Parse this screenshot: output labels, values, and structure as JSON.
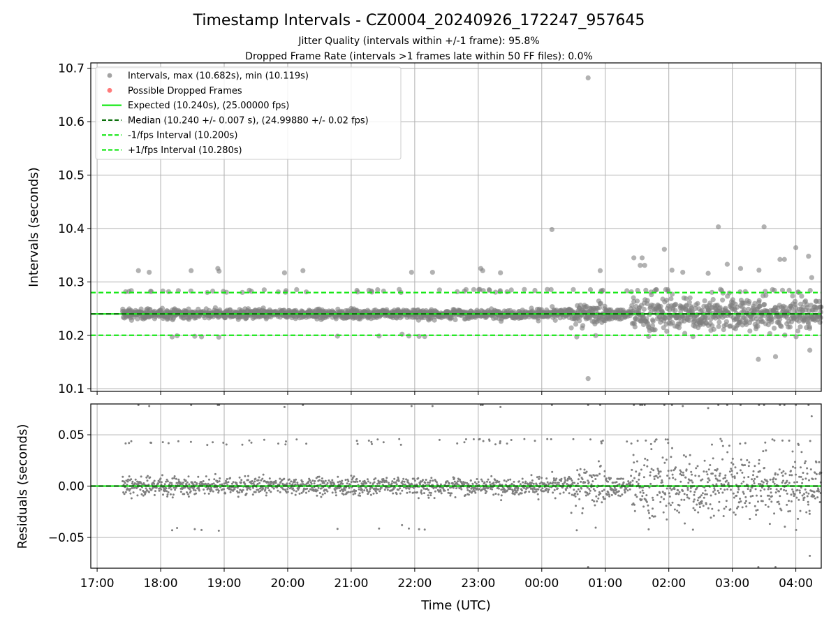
{
  "header": {
    "title": "Timestamp Intervals - CZ0004_20240926_172247_957645",
    "subtitle1": "Jitter Quality (intervals within +/-1 frame): 95.8%",
    "subtitle2": "Dropped Frame Rate (intervals >1 frames late within 50 FF files): 0.0%"
  },
  "colors": {
    "points": "#7f7f7f",
    "dropped": "#ff5a5a",
    "expected": "#17e817",
    "median": "#0a6e0a",
    "bound": "#17e817",
    "grid": "#b0b0b0"
  },
  "chart_data": [
    {
      "type": "scatter",
      "panel": "intervals",
      "xlabel": "",
      "ylabel": "Intervals (seconds)",
      "x_unit": "hours since 17:00 UTC (24-hour clock, wraps at midnight)",
      "xlim": [
        16.9,
        28.4
      ],
      "ylim": [
        10.095,
        10.71
      ],
      "yticks": [
        "10.1",
        "10.2",
        "10.3",
        "10.4",
        "10.5",
        "10.6",
        "10.7"
      ],
      "grid": true,
      "legend_position": "upper-left",
      "legend": [
        {
          "label": "Intervals, max (10.682s), min (10.119s)",
          "style": "marker",
          "color": "#999999"
        },
        {
          "label": "Possible Dropped Frames",
          "style": "marker",
          "color": "#ff6b6b"
        },
        {
          "label": "Expected (10.240s), (25.00000 fps)",
          "style": "solid",
          "color": "#17e817"
        },
        {
          "label": "Median (10.240 +/- 0.007 s), (24.99880 +/- 0.02 fps)",
          "style": "dashed",
          "color": "#0a6e0a"
        },
        {
          "label": "-1/fps Interval (10.200s)",
          "style": "dashed",
          "color": "#17e817"
        },
        {
          "label": "+1/fps Interval (10.280s)",
          "style": "dashed",
          "color": "#17e817"
        }
      ],
      "reference_lines": [
        {
          "name": "Expected",
          "y": 10.24
        },
        {
          "name": "Median",
          "y": 10.24
        },
        {
          "name": "-1/fps Interval",
          "y": 10.2
        },
        {
          "name": "+1/fps Interval",
          "y": 10.28
        }
      ],
      "max_interval": 10.682,
      "min_interval": 10.119,
      "data_x_range": [
        17.4,
        28.4
      ],
      "outliers": [
        {
          "x": 17.65,
          "y": 10.321
        },
        {
          "x": 17.82,
          "y": 10.318
        },
        {
          "x": 18.48,
          "y": 10.321
        },
        {
          "x": 18.9,
          "y": 10.325
        },
        {
          "x": 18.92,
          "y": 10.32
        },
        {
          "x": 19.95,
          "y": 10.317
        },
        {
          "x": 20.24,
          "y": 10.321
        },
        {
          "x": 21.95,
          "y": 10.318
        },
        {
          "x": 22.28,
          "y": 10.318
        },
        {
          "x": 23.04,
          "y": 10.325
        },
        {
          "x": 23.07,
          "y": 10.321
        },
        {
          "x": 23.35,
          "y": 10.317
        },
        {
          "x": 24.16,
          "y": 10.398
        },
        {
          "x": 24.73,
          "y": 10.682
        },
        {
          "x": 24.73,
          "y": 10.119
        },
        {
          "x": 24.92,
          "y": 10.321
        },
        {
          "x": 25.45,
          "y": 10.345
        },
        {
          "x": 25.58,
          "y": 10.345
        },
        {
          "x": 25.55,
          "y": 10.331
        },
        {
          "x": 25.62,
          "y": 10.331
        },
        {
          "x": 25.93,
          "y": 10.361
        },
        {
          "x": 26.05,
          "y": 10.322
        },
        {
          "x": 26.22,
          "y": 10.318
        },
        {
          "x": 26.62,
          "y": 10.316
        },
        {
          "x": 26.78,
          "y": 10.403
        },
        {
          "x": 26.92,
          "y": 10.333
        },
        {
          "x": 27.13,
          "y": 10.325
        },
        {
          "x": 27.42,
          "y": 10.322
        },
        {
          "x": 27.5,
          "y": 10.403
        },
        {
          "x": 27.75,
          "y": 10.342
        },
        {
          "x": 27.82,
          "y": 10.342
        },
        {
          "x": 28.0,
          "y": 10.364
        },
        {
          "x": 28.2,
          "y": 10.348
        },
        {
          "x": 28.25,
          "y": 10.308
        },
        {
          "x": 27.41,
          "y": 10.155
        },
        {
          "x": 27.68,
          "y": 10.16
        },
        {
          "x": 28.22,
          "y": 10.172
        },
        {
          "x": 21.8,
          "y": 10.202
        }
      ]
    },
    {
      "type": "scatter",
      "panel": "residuals",
      "xlabel": "Time (UTC)",
      "ylabel": "Residuals (seconds)",
      "x_unit": "hours since 17:00 UTC (24-hour clock, wraps at midnight)",
      "xlim": [
        16.9,
        28.4
      ],
      "ylim": [
        -0.08,
        0.08
      ],
      "yticks": [
        "−0.05",
        "0.00",
        "0.05"
      ],
      "xticks": [
        "17:00",
        "18:00",
        "19:00",
        "20:00",
        "21:00",
        "22:00",
        "23:00",
        "00:00",
        "01:00",
        "02:00",
        "03:00",
        "04:00"
      ],
      "grid": true,
      "reference_lines": [
        {
          "name": "Expected",
          "y": 0.0
        },
        {
          "name": "Median",
          "y": 0.0
        }
      ]
    }
  ]
}
